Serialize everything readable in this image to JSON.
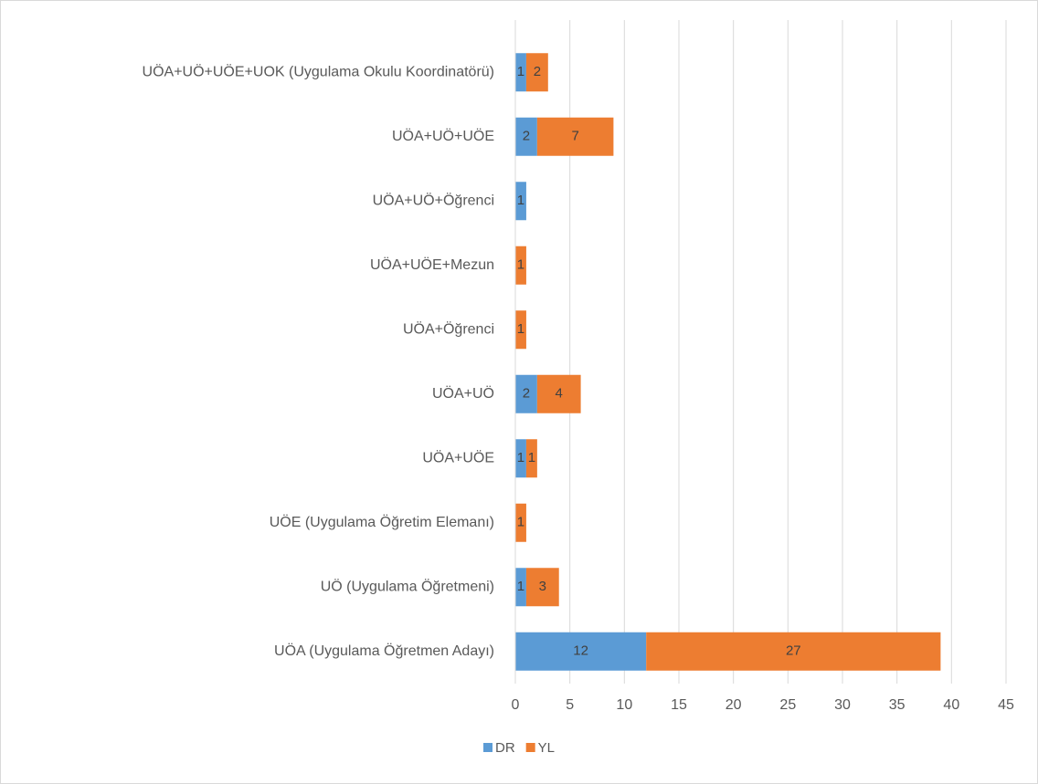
{
  "chart_data": {
    "type": "stacked_barh",
    "categories": [
      "UÖA+UÖ+UÖE+UOK (Uygulama Okulu Koordinatörü)",
      "UÖA+UÖ+UÖE",
      "UÖA+UÖ+Öğrenci",
      "UÖA+UÖE+Mezun",
      "UÖA+Öğrenci",
      "UÖA+UÖ",
      "UÖA+UÖE",
      "UÖE (Uygulama Öğretim Elemanı)",
      "UÖ (Uygulama Öğretmeni)",
      "UÖA (Uygulama Öğretmen Adayı)"
    ],
    "series": [
      {
        "name": "DR",
        "color": "#5b9bd5",
        "values": [
          1,
          2,
          1,
          null,
          null,
          2,
          1,
          null,
          1,
          12
        ]
      },
      {
        "name": "YL",
        "color": "#ed7d31",
        "values": [
          2,
          7,
          null,
          1,
          1,
          4,
          1,
          1,
          3,
          27
        ]
      }
    ],
    "xlim": [
      0,
      45
    ],
    "xticks": [
      0,
      5,
      10,
      15,
      20,
      25,
      30,
      35,
      40,
      45
    ],
    "grid": true,
    "legend": "bottom"
  }
}
